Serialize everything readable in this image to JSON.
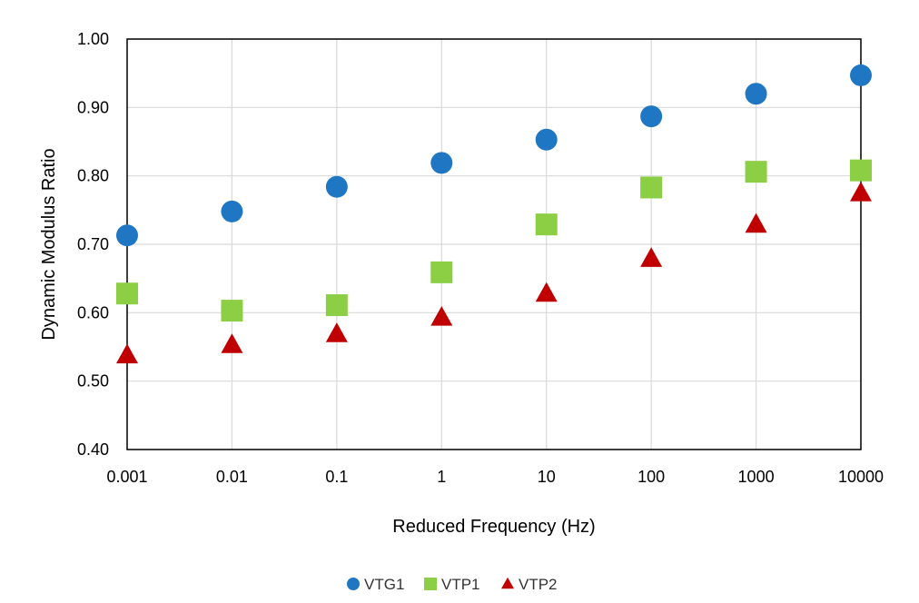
{
  "chart_data": {
    "type": "scatter",
    "title": "",
    "xlabel": "Reduced Frequency (Hz)",
    "ylabel": "Dynamic Modulus Ratio",
    "x_scale": "log",
    "x": [
      0.001,
      0.01,
      0.1,
      1,
      10,
      100,
      1000,
      10000
    ],
    "x_tick_labels": [
      "0.001",
      "0.01",
      "0.1",
      "1",
      "10",
      "100",
      "1000",
      "10000"
    ],
    "ylim": [
      0.4,
      1.0
    ],
    "y_ticks": [
      0.4,
      0.5,
      0.6,
      0.7,
      0.8,
      0.9,
      1.0
    ],
    "y_tick_labels": [
      "0.40",
      "0.50",
      "0.60",
      "0.70",
      "0.80",
      "0.90",
      "1.00"
    ],
    "grid": true,
    "legend_position": "bottom",
    "series": [
      {
        "name": "VTG1",
        "marker": "circle",
        "color": "#1f77c4",
        "values": [
          0.713,
          0.748,
          0.784,
          0.819,
          0.853,
          0.887,
          0.92,
          0.947
        ]
      },
      {
        "name": "VTP1",
        "marker": "square",
        "color": "#8ccf45",
        "values": [
          0.628,
          0.603,
          0.611,
          0.659,
          0.729,
          0.783,
          0.806,
          0.808
        ]
      },
      {
        "name": "VTP2",
        "marker": "triangle",
        "color": "#c00000",
        "values": [
          0.538,
          0.553,
          0.569,
          0.593,
          0.628,
          0.679,
          0.729,
          0.775
        ]
      }
    ]
  }
}
